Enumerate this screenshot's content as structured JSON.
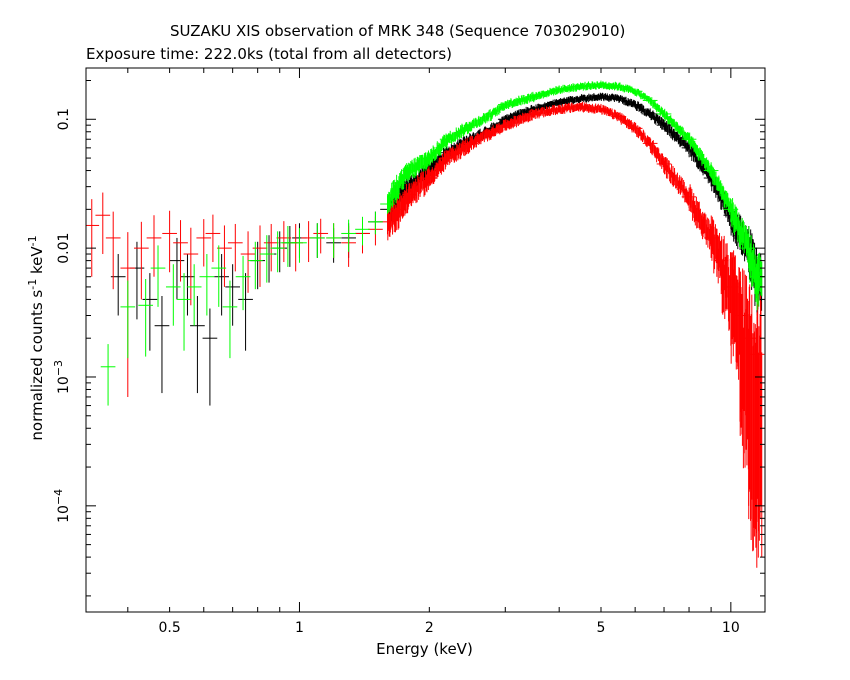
{
  "chart_data": {
    "type": "scatter",
    "title": "SUZAKU XIS observation of MRK 348 (Sequence 703029010)",
    "subtitle": "Exposure time: 222.0ks (total from all detectors)",
    "xlabel": "Energy (keV)",
    "ylabel_parts": [
      "normalized counts s",
      "-1",
      " keV",
      "-1"
    ],
    "x_scale": "log",
    "y_scale": "log",
    "xlim": [
      0.32,
      12.0
    ],
    "ylim": [
      1.5e-05,
      0.25
    ],
    "x_ticks": [
      {
        "value": 0.5,
        "label": "0.5"
      },
      {
        "value": 1,
        "label": "1"
      },
      {
        "value": 2,
        "label": "2"
      },
      {
        "value": 5,
        "label": "5"
      },
      {
        "value": 10,
        "label": "10"
      }
    ],
    "y_ticks": [
      {
        "value": 0.1,
        "label": "0.1",
        "exp": ""
      },
      {
        "value": 0.01,
        "label": "0.01",
        "exp": ""
      },
      {
        "value": 0.001,
        "label": "10",
        "exp": "−3"
      },
      {
        "value": 0.0001,
        "label": "10",
        "exp": "−4"
      }
    ],
    "grid": false,
    "legend": "none",
    "series": [
      {
        "color": "#000000",
        "x": [
          0.38,
          0.42,
          0.45,
          0.48,
          0.52,
          0.55,
          0.58,
          0.62,
          0.66,
          0.7,
          0.75,
          0.8,
          0.85,
          0.9,
          0.95,
          1.0,
          1.1,
          1.2,
          1.3,
          1.4,
          1.5,
          1.6,
          1.7,
          1.8,
          2.0,
          2.2,
          2.5,
          2.8,
          3.0,
          3.5,
          4.0,
          4.5,
          5.0,
          5.5,
          6.0,
          6.5,
          7.0,
          8.0,
          9.0,
          10.0,
          11.0,
          11.5
        ],
        "y": [
          0.006,
          0.007,
          0.004,
          0.0025,
          0.008,
          0.006,
          0.0025,
          0.002,
          0.006,
          0.005,
          0.004,
          0.008,
          0.009,
          0.01,
          0.011,
          0.012,
          0.012,
          0.011,
          0.012,
          0.013,
          0.016,
          0.02,
          0.025,
          0.03,
          0.04,
          0.055,
          0.07,
          0.085,
          0.1,
          0.12,
          0.135,
          0.145,
          0.15,
          0.145,
          0.13,
          0.11,
          0.09,
          0.06,
          0.035,
          0.018,
          0.01,
          0.006
        ],
        "err": [
          0.5,
          0.6,
          0.6,
          0.7,
          0.5,
          0.5,
          0.7,
          0.7,
          0.5,
          0.5,
          0.6,
          0.4,
          0.4,
          0.35,
          0.35,
          0.3,
          0.3,
          0.3,
          0.3,
          0.25,
          0.2,
          0.18,
          0.15,
          0.12,
          0.1,
          0.08,
          0.07,
          0.06,
          0.06,
          0.05,
          0.05,
          0.05,
          0.05,
          0.05,
          0.06,
          0.07,
          0.08,
          0.1,
          0.14,
          0.22,
          0.35,
          0.5
        ]
      },
      {
        "color": "#ff0000",
        "x": [
          0.33,
          0.35,
          0.37,
          0.4,
          0.43,
          0.46,
          0.5,
          0.53,
          0.56,
          0.6,
          0.63,
          0.67,
          0.71,
          0.76,
          0.81,
          0.86,
          0.92,
          0.98,
          1.05,
          1.12,
          1.2,
          1.3,
          1.4,
          1.5,
          1.6,
          1.7,
          1.8,
          2.0,
          2.2,
          2.5,
          2.8,
          3.0,
          3.5,
          4.0,
          4.5,
          5.0,
          5.5,
          6.0,
          6.5,
          7.0,
          8.0,
          9.0,
          9.5,
          10.0,
          10.5,
          11.0,
          11.5
        ],
        "y": [
          0.015,
          0.018,
          0.012,
          0.007,
          0.01,
          0.012,
          0.013,
          0.011,
          0.009,
          0.012,
          0.013,
          0.01,
          0.011,
          0.009,
          0.01,
          0.011,
          0.012,
          0.011,
          0.012,
          0.013,
          0.012,
          0.011,
          0.013,
          0.014,
          0.016,
          0.02,
          0.026,
          0.035,
          0.05,
          0.065,
          0.08,
          0.09,
          0.11,
          0.12,
          0.125,
          0.12,
          0.105,
          0.085,
          0.065,
          0.045,
          0.025,
          0.012,
          0.008,
          0.005,
          0.003,
          0.002,
          0.0015
        ],
        "err": [
          0.6,
          0.5,
          0.6,
          0.9,
          0.6,
          0.5,
          0.5,
          0.5,
          0.6,
          0.4,
          0.4,
          0.5,
          0.4,
          0.5,
          0.5,
          0.4,
          0.35,
          0.4,
          0.35,
          0.3,
          0.3,
          0.35,
          0.3,
          0.25,
          0.2,
          0.18,
          0.15,
          0.12,
          0.1,
          0.08,
          0.07,
          0.07,
          0.06,
          0.06,
          0.06,
          0.06,
          0.07,
          0.08,
          0.1,
          0.12,
          0.18,
          0.3,
          0.45,
          0.65,
          0.85,
          0.95,
          0.95
        ]
      },
      {
        "color": "#00ff00",
        "x": [
          0.36,
          0.4,
          0.44,
          0.47,
          0.51,
          0.54,
          0.57,
          0.61,
          0.65,
          0.69,
          0.74,
          0.79,
          0.84,
          0.89,
          0.94,
          1.0,
          1.1,
          1.2,
          1.3,
          1.4,
          1.5,
          1.6,
          1.7,
          1.8,
          2.0,
          2.2,
          2.5,
          2.8,
          3.0,
          3.5,
          4.0,
          4.5,
          5.0,
          5.5,
          6.0,
          6.5,
          7.0,
          8.0,
          9.0,
          10.0,
          11.0,
          11.5
        ],
        "y": [
          0.0012,
          0.0035,
          0.0036,
          0.007,
          0.005,
          0.004,
          0.005,
          0.006,
          0.007,
          0.0035,
          0.006,
          0.008,
          0.009,
          0.01,
          0.011,
          0.011,
          0.012,
          0.012,
          0.013,
          0.014,
          0.016,
          0.022,
          0.032,
          0.04,
          0.05,
          0.07,
          0.09,
          0.11,
          0.13,
          0.15,
          0.17,
          0.18,
          0.185,
          0.18,
          0.165,
          0.14,
          0.11,
          0.07,
          0.04,
          0.02,
          0.01,
          0.006
        ],
        "err": [
          0.5,
          0.6,
          0.6,
          0.5,
          0.5,
          0.6,
          0.5,
          0.5,
          0.5,
          0.6,
          0.45,
          0.4,
          0.4,
          0.35,
          0.35,
          0.3,
          0.3,
          0.3,
          0.28,
          0.25,
          0.2,
          0.16,
          0.13,
          0.12,
          0.1,
          0.08,
          0.07,
          0.06,
          0.06,
          0.05,
          0.05,
          0.05,
          0.05,
          0.05,
          0.05,
          0.06,
          0.07,
          0.09,
          0.12,
          0.2,
          0.3,
          0.45
        ]
      }
    ]
  }
}
